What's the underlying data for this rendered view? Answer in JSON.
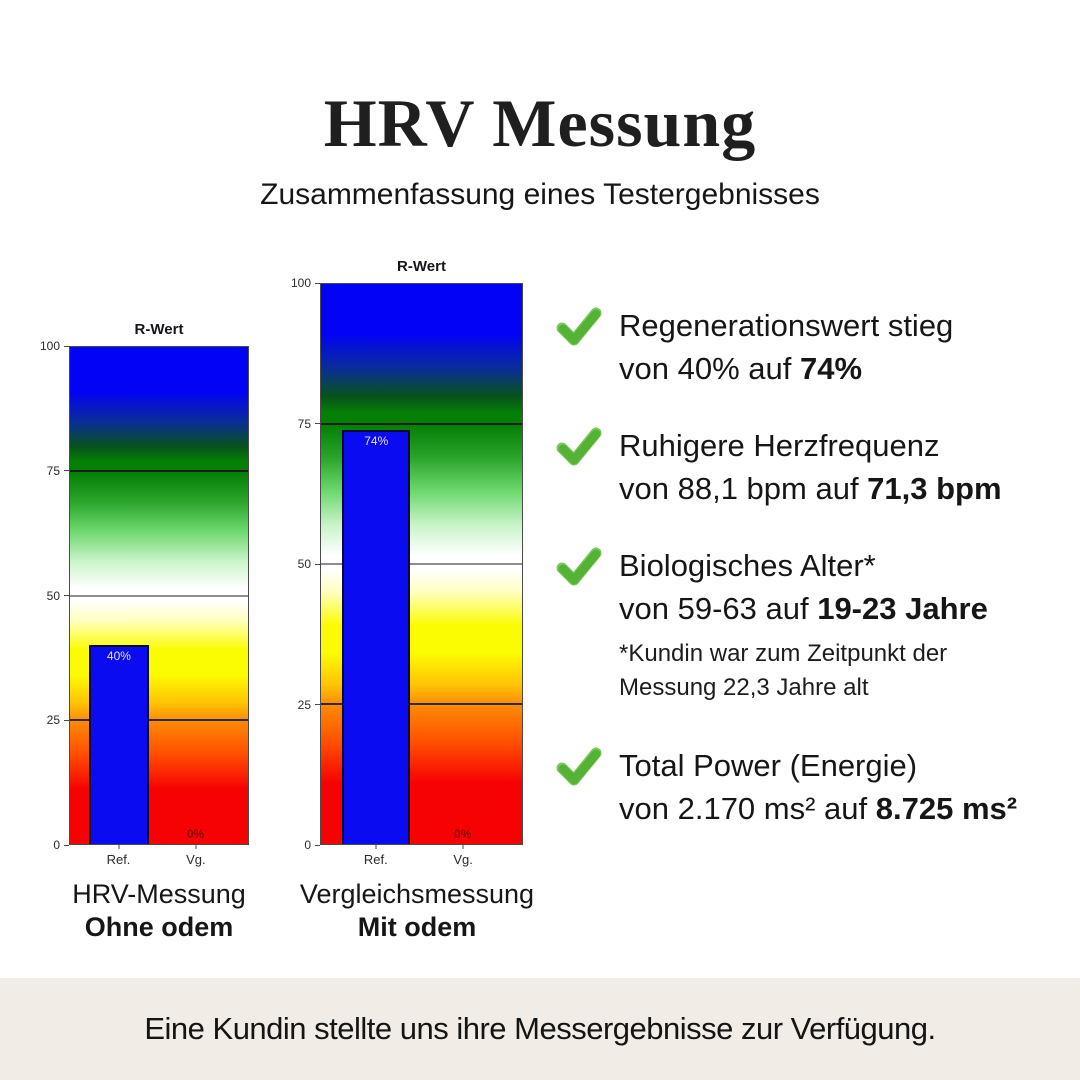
{
  "header": {
    "title": "HRV Messung",
    "subtitle": "Zusammenfassung eines Testergebnisses"
  },
  "chart_data": [
    {
      "type": "bar",
      "title": "R-Wert",
      "categories": [
        "Ref.",
        "Vg."
      ],
      "values": [
        40,
        0
      ],
      "bar_labels": [
        "40%",
        "0%"
      ],
      "ylim": [
        0,
        100
      ],
      "yticks": [
        100,
        75,
        50,
        25,
        0
      ],
      "gridlines": [
        75,
        50,
        25
      ],
      "xlabel": "",
      "ylabel": "",
      "legend": "none",
      "background": "rainbow-gradient blue(100)->green(75)->white(50)->yellow->orange(25)->red(0)",
      "caption": {
        "line1": "HRV-Messung",
        "line2": "Ohne odem"
      }
    },
    {
      "type": "bar",
      "title": "R-Wert",
      "categories": [
        "Ref.",
        "Vg."
      ],
      "values": [
        74,
        0
      ],
      "bar_labels": [
        "74%",
        "0%"
      ],
      "ylim": [
        0,
        100
      ],
      "yticks": [
        100,
        75,
        50,
        25,
        0
      ],
      "gridlines": [
        75,
        50,
        25
      ],
      "xlabel": "",
      "ylabel": "",
      "legend": "none",
      "background": "rainbow-gradient blue(100)->green(75)->white(50)->yellow->orange(25)->red(0)",
      "caption": {
        "line1": "Vergleichsmessung",
        "line2": "Mit odem"
      }
    }
  ],
  "bullets": [
    {
      "line1": "Regenerationswert stieg",
      "line2_normal": "von 40% auf ",
      "line2_bold": "74%"
    },
    {
      "line1": "Ruhigere Herzfrequenz",
      "line2_normal": "von 88,1 bpm auf ",
      "line2_bold": "71,3 bpm"
    },
    {
      "line1": "Biologisches Alter*",
      "line2_normal": "von 59-63 auf ",
      "line2_bold": "19-23 Jahre",
      "footnote": "*Kundin war zum Zeitpunkt der Messung 22,3 Jahre alt"
    },
    {
      "line1": "Total Power (Energie)",
      "line2_normal": "von 2.170 ms² auf ",
      "line2_bold": "8.725 ms²"
    }
  ],
  "footer": {
    "text": "Eine Kundin stellte uns ihre Messergebnisse zur Verfügung."
  },
  "colors": {
    "check_green": "#54b234",
    "check_green_light": "#7bc95b",
    "bar_blue": "#0b0bf2",
    "zero_label": "#8b0000",
    "footer_bg": "#f1ede6",
    "gradient_top_blue": "#0202f4",
    "gradient_green": "#067f06",
    "gradient_yellow": "#fbfb02",
    "gradient_orange": "#ff8c04",
    "gradient_red": "#f70202"
  }
}
